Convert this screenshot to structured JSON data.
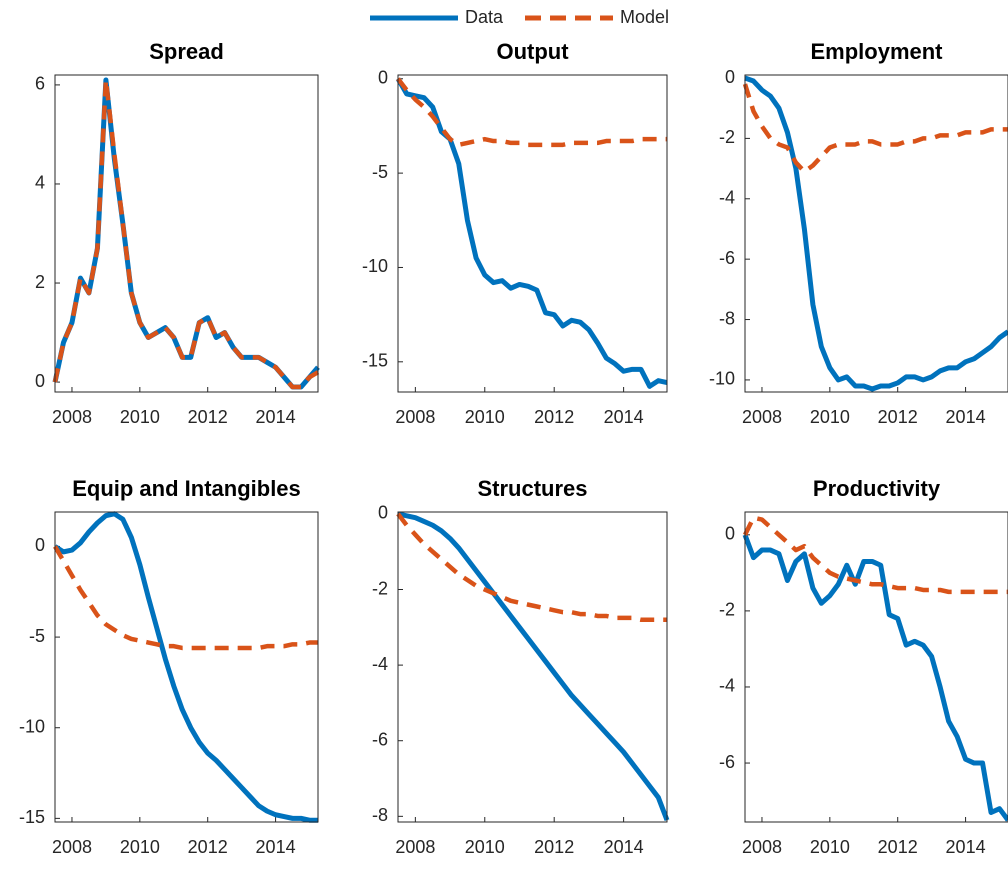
{
  "chart_data": [
    {
      "type": "line",
      "title": "Spread",
      "x": [
        2007.5,
        2007.75,
        2008,
        2008.25,
        2008.5,
        2008.75,
        2009,
        2009.25,
        2009.5,
        2009.75,
        2010,
        2010.25,
        2010.5,
        2010.75,
        2011,
        2011.25,
        2011.5,
        2011.75,
        2012,
        2012.25,
        2012.5,
        2012.75,
        2013,
        2013.25,
        2013.5,
        2013.75,
        2014,
        2014.25,
        2014.5,
        2014.75,
        2015,
        2015.25
      ],
      "xlim": [
        2007.5,
        2015.25
      ],
      "xticks": [
        2008,
        2010,
        2012,
        2014
      ],
      "ylim": [
        -0.2,
        6.2
      ],
      "yticks": [
        0,
        2,
        4,
        6
      ],
      "series": [
        {
          "name": "Data",
          "color": "#0072bd",
          "values": [
            0,
            0.8,
            1.2,
            2.1,
            1.8,
            2.7,
            6.1,
            4.5,
            3.2,
            1.8,
            1.2,
            0.9,
            1.0,
            1.1,
            0.9,
            0.5,
            0.5,
            1.2,
            1.3,
            0.9,
            1.0,
            0.7,
            0.5,
            0.5,
            0.5,
            0.4,
            0.3,
            0.1,
            -0.1,
            -0.1,
            0.1,
            0.3
          ]
        },
        {
          "name": "Model",
          "color": "#d95319",
          "dashed": true,
          "values": [
            0,
            0.8,
            1.2,
            2.1,
            1.8,
            2.7,
            6.1,
            4.6,
            3.2,
            1.8,
            1.2,
            0.9,
            1.0,
            1.1,
            0.9,
            0.5,
            0.5,
            1.2,
            1.3,
            0.9,
            1.0,
            0.7,
            0.5,
            0.5,
            0.5,
            0.4,
            0.3,
            0.1,
            -0.1,
            -0.1,
            0.1,
            0.2
          ]
        }
      ]
    },
    {
      "type": "line",
      "title": "Output",
      "x": [
        2007.5,
        2007.75,
        2008,
        2008.25,
        2008.5,
        2008.75,
        2009,
        2009.25,
        2009.5,
        2009.75,
        2010,
        2010.25,
        2010.5,
        2010.75,
        2011,
        2011.25,
        2011.5,
        2011.75,
        2012,
        2012.25,
        2012.5,
        2012.75,
        2013,
        2013.25,
        2013.5,
        2013.75,
        2014,
        2014.25,
        2014.5,
        2014.75,
        2015,
        2015.25
      ],
      "xlim": [
        2007.5,
        2015.25
      ],
      "xticks": [
        2008,
        2010,
        2012,
        2014
      ],
      "ylim": [
        -16.6,
        0.2
      ],
      "yticks": [
        -15,
        -10,
        -5,
        0
      ],
      "series": [
        {
          "name": "Data",
          "color": "#0072bd",
          "values": [
            0,
            -0.8,
            -0.9,
            -1.0,
            -1.5,
            -2.8,
            -3.2,
            -4.5,
            -7.5,
            -9.5,
            -10.4,
            -10.8,
            -10.7,
            -11.1,
            -10.9,
            -11.0,
            -11.2,
            -12.4,
            -12.5,
            -13.1,
            -12.8,
            -12.9,
            -13.3,
            -14.0,
            -14.8,
            -15.1,
            -15.5,
            -15.4,
            -15.4,
            -16.3,
            -16.0,
            -16.1
          ]
        },
        {
          "name": "Model",
          "color": "#d95319",
          "dashed": true,
          "values": [
            0,
            -0.6,
            -1.1,
            -1.5,
            -2.0,
            -2.6,
            -3.2,
            -3.5,
            -3.4,
            -3.3,
            -3.2,
            -3.3,
            -3.3,
            -3.4,
            -3.4,
            -3.5,
            -3.5,
            -3.5,
            -3.5,
            -3.5,
            -3.4,
            -3.4,
            -3.4,
            -3.4,
            -3.3,
            -3.3,
            -3.3,
            -3.3,
            -3.2,
            -3.2,
            -3.2,
            -3.2
          ]
        }
      ]
    },
    {
      "type": "line",
      "title": "Employment",
      "x": [
        2007.5,
        2007.75,
        2008,
        2008.25,
        2008.5,
        2008.75,
        2009,
        2009.25,
        2009.5,
        2009.75,
        2010,
        2010.25,
        2010.5,
        2010.75,
        2011,
        2011.25,
        2011.5,
        2011.75,
        2012,
        2012.25,
        2012.5,
        2012.75,
        2013,
        2013.25,
        2013.5,
        2013.75,
        2014,
        2014.25,
        2014.5,
        2014.75,
        2015,
        2015.25
      ],
      "xlim": [
        2007.5,
        2015.25
      ],
      "xticks": [
        2008,
        2010,
        2012,
        2014
      ],
      "ylim": [
        -10.4,
        0.1
      ],
      "yticks": [
        -10,
        -8,
        -6,
        -4,
        -2,
        0
      ],
      "series": [
        {
          "name": "Data",
          "color": "#0072bd",
          "values": [
            0,
            -0.1,
            -0.4,
            -0.6,
            -1.0,
            -1.8,
            -3.0,
            -5.0,
            -7.5,
            -8.9,
            -9.6,
            -10.0,
            -9.9,
            -10.2,
            -10.2,
            -10.3,
            -10.2,
            -10.2,
            -10.1,
            -9.9,
            -9.9,
            -10.0,
            -9.9,
            -9.7,
            -9.6,
            -9.6,
            -9.4,
            -9.3,
            -9.1,
            -8.9,
            -8.6,
            -8.4
          ]
        },
        {
          "name": "Model",
          "color": "#d95319",
          "dashed": true,
          "values": [
            -0.2,
            -1.1,
            -1.6,
            -2.0,
            -2.2,
            -2.3,
            -2.8,
            -3.1,
            -2.9,
            -2.6,
            -2.3,
            -2.2,
            -2.2,
            -2.2,
            -2.1,
            -2.1,
            -2.2,
            -2.2,
            -2.2,
            -2.1,
            -2.1,
            -2.0,
            -2.0,
            -1.9,
            -1.9,
            -1.9,
            -1.8,
            -1.8,
            -1.8,
            -1.7,
            -1.7,
            -1.7
          ]
        }
      ]
    },
    {
      "type": "line",
      "title": "Equip and Intangibles",
      "x": [
        2007.5,
        2007.75,
        2008,
        2008.25,
        2008.5,
        2008.75,
        2009,
        2009.25,
        2009.5,
        2009.75,
        2010,
        2010.25,
        2010.5,
        2010.75,
        2011,
        2011.25,
        2011.5,
        2011.75,
        2012,
        2012.25,
        2012.5,
        2012.75,
        2013,
        2013.25,
        2013.5,
        2013.75,
        2014,
        2014.25,
        2014.5,
        2014.75,
        2015,
        2015.25
      ],
      "xlim": [
        2007.5,
        2015.25
      ],
      "xticks": [
        2008,
        2010,
        2012,
        2014
      ],
      "ylim": [
        -15.2,
        1.9
      ],
      "yticks": [
        -15,
        -10,
        -5,
        0
      ],
      "series": [
        {
          "name": "Data",
          "color": "#0072bd",
          "values": [
            0,
            -0.3,
            -0.2,
            0.2,
            0.8,
            1.3,
            1.7,
            1.8,
            1.5,
            0.5,
            -1.0,
            -2.8,
            -4.5,
            -6.2,
            -7.7,
            -9.0,
            -10.0,
            -10.8,
            -11.4,
            -11.8,
            -12.3,
            -12.8,
            -13.3,
            -13.8,
            -14.3,
            -14.6,
            -14.8,
            -14.9,
            -15.0,
            -15.0,
            -15.1,
            -15.1
          ]
        },
        {
          "name": "Model",
          "color": "#d95319",
          "dashed": true,
          "values": [
            0,
            -0.8,
            -1.6,
            -2.4,
            -3.1,
            -3.8,
            -4.3,
            -4.6,
            -4.9,
            -5.1,
            -5.2,
            -5.3,
            -5.4,
            -5.5,
            -5.5,
            -5.6,
            -5.6,
            -5.6,
            -5.6,
            -5.6,
            -5.6,
            -5.6,
            -5.6,
            -5.6,
            -5.6,
            -5.5,
            -5.5,
            -5.5,
            -5.4,
            -5.4,
            -5.3,
            -5.3
          ]
        }
      ]
    },
    {
      "type": "line",
      "title": "Structures",
      "x": [
        2007.5,
        2007.75,
        2008,
        2008.25,
        2008.5,
        2008.75,
        2009,
        2009.25,
        2009.5,
        2009.75,
        2010,
        2010.25,
        2010.5,
        2010.75,
        2011,
        2011.25,
        2011.5,
        2011.75,
        2012,
        2012.25,
        2012.5,
        2012.75,
        2013,
        2013.25,
        2013.5,
        2013.75,
        2014,
        2014.25,
        2014.5,
        2014.75,
        2015,
        2015.25
      ],
      "xlim": [
        2007.5,
        2015.25
      ],
      "xticks": [
        2008,
        2010,
        2012,
        2014
      ],
      "ylim": [
        -8.15,
        0.05
      ],
      "yticks": [
        -8,
        -6,
        -4,
        -2,
        0
      ],
      "series": [
        {
          "name": "Data",
          "color": "#0072bd",
          "values": [
            0,
            -0.05,
            -0.1,
            -0.2,
            -0.3,
            -0.45,
            -0.65,
            -0.9,
            -1.2,
            -1.5,
            -1.8,
            -2.1,
            -2.4,
            -2.7,
            -3.0,
            -3.3,
            -3.6,
            -3.9,
            -4.2,
            -4.5,
            -4.8,
            -5.05,
            -5.3,
            -5.55,
            -5.8,
            -6.05,
            -6.3,
            -6.6,
            -6.9,
            -7.2,
            -7.5,
            -8.1
          ]
        },
        {
          "name": "Model",
          "color": "#d95319",
          "dashed": true,
          "values": [
            0,
            -0.3,
            -0.55,
            -0.8,
            -1.0,
            -1.2,
            -1.4,
            -1.6,
            -1.75,
            -1.9,
            -2.0,
            -2.1,
            -2.2,
            -2.3,
            -2.35,
            -2.4,
            -2.45,
            -2.5,
            -2.55,
            -2.6,
            -2.6,
            -2.65,
            -2.65,
            -2.7,
            -2.7,
            -2.75,
            -2.75,
            -2.75,
            -2.8,
            -2.8,
            -2.8,
            -2.8
          ]
        }
      ]
    },
    {
      "type": "line",
      "title": "Productivity",
      "x": [
        2007.5,
        2007.75,
        2008,
        2008.25,
        2008.5,
        2008.75,
        2009,
        2009.25,
        2009.5,
        2009.75,
        2010,
        2010.25,
        2010.5,
        2010.75,
        2011,
        2011.25,
        2011.5,
        2011.75,
        2012,
        2012.25,
        2012.5,
        2012.75,
        2013,
        2013.25,
        2013.5,
        2013.75,
        2014,
        2014.25,
        2014.5,
        2014.75,
        2015,
        2015.25
      ],
      "xlim": [
        2007.5,
        2015.25
      ],
      "xticks": [
        2008,
        2010,
        2012,
        2014
      ],
      "ylim": [
        -7.55,
        0.6
      ],
      "yticks": [
        -6,
        -4,
        -2,
        0
      ],
      "series": [
        {
          "name": "Data",
          "color": "#0072bd",
          "values": [
            0,
            -0.6,
            -0.4,
            -0.4,
            -0.5,
            -1.2,
            -0.7,
            -0.5,
            -1.4,
            -1.8,
            -1.6,
            -1.3,
            -0.8,
            -1.3,
            -0.7,
            -0.7,
            -0.8,
            -2.1,
            -2.2,
            -2.9,
            -2.8,
            -2.9,
            -3.2,
            -4.0,
            -4.9,
            -5.3,
            -5.9,
            -6.0,
            -6.0,
            -7.3,
            -7.2,
            -7.5
          ]
        },
        {
          "name": "Model",
          "color": "#d95319",
          "dashed": true,
          "values": [
            0,
            0.45,
            0.4,
            0.2,
            0.0,
            -0.2,
            -0.4,
            -0.3,
            -0.6,
            -0.8,
            -1.0,
            -1.1,
            -1.15,
            -1.2,
            -1.25,
            -1.3,
            -1.3,
            -1.35,
            -1.4,
            -1.4,
            -1.4,
            -1.45,
            -1.45,
            -1.45,
            -1.5,
            -1.5,
            -1.5,
            -1.5,
            -1.5,
            -1.5,
            -1.5,
            -1.5
          ]
        }
      ]
    }
  ]
}
